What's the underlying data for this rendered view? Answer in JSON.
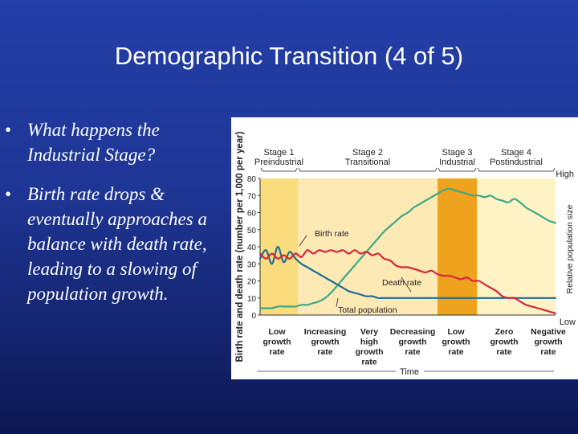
{
  "slide": {
    "title": "Demographic Transition (4 of 5)",
    "bullets": [
      {
        "marker": "•",
        "text": "What happens the Industrial Stage?"
      },
      {
        "marker": "•",
        "text": "Birth rate drops & eventually approaches a balance with death rate, leading to a slowing of population growth."
      }
    ]
  },
  "chart_data": {
    "type": "line",
    "ylabel": "Birth rate and death rate (number per 1,000 per year)",
    "ylabel_right": "Relative population size",
    "right_axis_high": "High",
    "right_axis_low": "Low",
    "xlabel": "Time",
    "yticks": [
      0,
      10,
      20,
      30,
      40,
      50,
      60,
      70,
      80
    ],
    "ylim": [
      0,
      80
    ],
    "stages": [
      {
        "name": "Stage 1",
        "label": "Preindustrial",
        "color": "#f9dc7c"
      },
      {
        "name": "Stage 2",
        "label": "Transitional",
        "color": "#fde9b4"
      },
      {
        "name": "Stage 3",
        "label": "Industrial",
        "color": "#eea21e"
      },
      {
        "name": "Stage 4",
        "label": "Postindustrial",
        "color": "#fff3c6"
      }
    ],
    "growth_labels": [
      "Low growth rate",
      "Increasing growth rate",
      "Very high growth rate",
      "Decreasing growth rate",
      "Low growth rate",
      "Zero growth rate",
      "Negative growth rate"
    ],
    "series": [
      {
        "name": "Birth rate",
        "color": "#d4253e",
        "x": [
          0,
          2,
          4,
          6,
          8,
          10,
          12,
          14,
          16,
          18,
          20,
          22,
          24,
          26,
          28,
          30,
          32,
          34,
          36,
          38,
          40,
          42,
          44,
          46,
          48,
          50,
          52,
          54,
          56,
          58,
          60,
          62,
          64,
          66,
          68,
          70,
          72,
          74,
          76,
          78,
          80,
          82,
          84,
          86,
          88,
          90,
          92,
          94,
          96,
          98,
          100
        ],
        "values": [
          36,
          33,
          36,
          33,
          35,
          33,
          36,
          34,
          38,
          36,
          38,
          37,
          38,
          37,
          38,
          36,
          38,
          36,
          37,
          35,
          36,
          33,
          32,
          29,
          28,
          28,
          27,
          26,
          25,
          26,
          24,
          23,
          23,
          22,
          21,
          22,
          20,
          20,
          18,
          16,
          14,
          11,
          10,
          10,
          8,
          6,
          5,
          4,
          3,
          2,
          1
        ]
      },
      {
        "name": "Death rate",
        "color": "#1c6e96",
        "x": [
          0,
          2,
          4,
          6,
          8,
          10,
          12,
          14,
          16,
          18,
          20,
          22,
          24,
          26,
          28,
          30,
          32,
          34,
          36,
          38,
          40,
          42,
          44,
          46,
          48,
          50,
          52,
          54,
          56,
          58,
          60,
          62,
          64,
          66,
          68,
          70,
          72,
          74,
          76,
          78,
          80,
          82,
          84,
          86,
          88,
          90,
          92,
          94,
          96,
          98,
          100
        ],
        "values": [
          33,
          38,
          30,
          40,
          31,
          37,
          33,
          30,
          28,
          26,
          24,
          22,
          20,
          18,
          16,
          14,
          13,
          12,
          11,
          11,
          10,
          10,
          10,
          10,
          10,
          10,
          10,
          10,
          10,
          10,
          10,
          10,
          10,
          10,
          10,
          10,
          10,
          10,
          10,
          10,
          10,
          10,
          10,
          10,
          10,
          10,
          10,
          10,
          10,
          10,
          10
        ]
      },
      {
        "name": "Total population",
        "color": "#3ca88a",
        "x": [
          0,
          2,
          4,
          6,
          8,
          10,
          12,
          14,
          16,
          18,
          20,
          22,
          24,
          26,
          28,
          30,
          32,
          34,
          36,
          38,
          40,
          42,
          44,
          46,
          48,
          50,
          52,
          54,
          56,
          58,
          60,
          62,
          64,
          66,
          68,
          70,
          72,
          74,
          76,
          78,
          80,
          82,
          84,
          86,
          88,
          90,
          92,
          94,
          96,
          98,
          100
        ],
        "values": [
          4,
          4,
          4,
          5,
          5,
          5,
          5,
          6,
          6,
          7,
          8,
          10,
          13,
          17,
          21,
          25,
          29,
          33,
          37,
          41,
          45,
          49,
          52,
          55,
          58,
          60,
          63,
          65,
          67,
          69,
          71,
          73,
          74,
          73,
          72,
          71,
          70,
          70,
          69,
          70,
          68,
          67,
          66,
          68,
          66,
          63,
          61,
          59,
          57,
          55,
          54
        ]
      }
    ],
    "annotations": [
      "Birth rate",
      "Death rate",
      "Total population"
    ]
  }
}
